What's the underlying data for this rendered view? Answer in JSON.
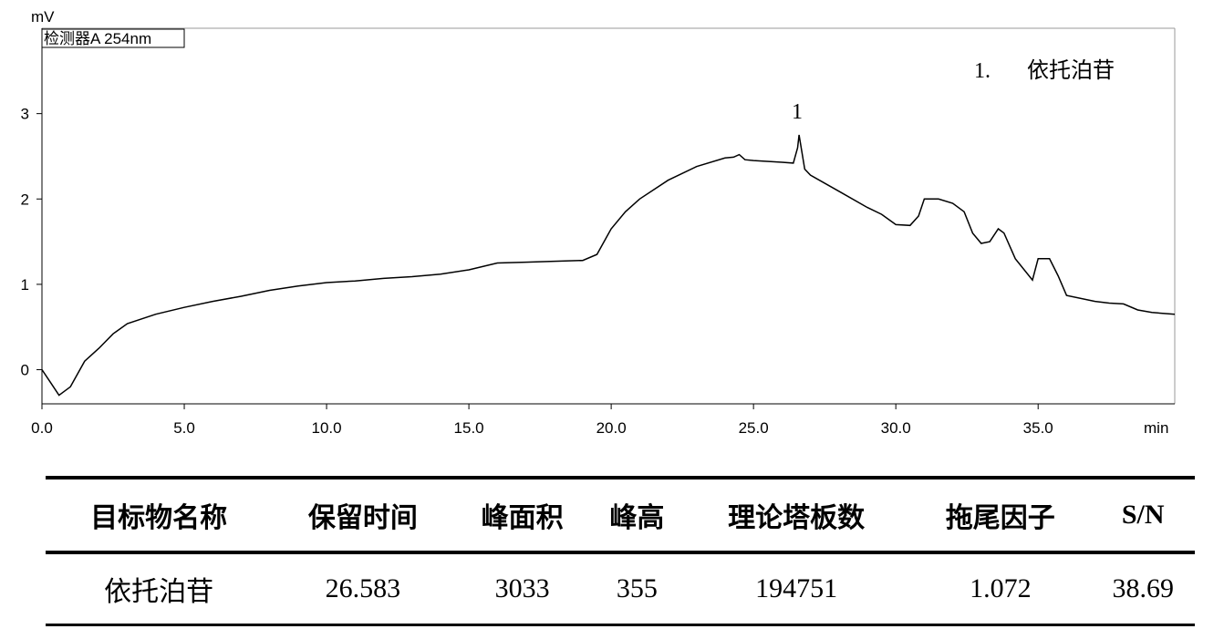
{
  "chart_data": {
    "type": "line",
    "y_label": "mV",
    "x_label": "min",
    "detector_label": "检测器A 254nm",
    "peak_label": "1",
    "legend_number": "1.",
    "legend_text": "依托泊苷",
    "color": "#000000",
    "xlim": [
      0,
      39.8
    ],
    "ylim": [
      -0.4,
      4.0
    ],
    "xticks": [
      {
        "value": 0,
        "label": "0.0"
      },
      {
        "value": 5,
        "label": "5.0"
      },
      {
        "value": 10,
        "label": "10.0"
      },
      {
        "value": 15,
        "label": "15.0"
      },
      {
        "value": 20,
        "label": "20.0"
      },
      {
        "value": 25,
        "label": "25.0"
      },
      {
        "value": 30,
        "label": "30.0"
      },
      {
        "value": 35,
        "label": "35.0"
      }
    ],
    "yticks": [
      0,
      1,
      2,
      3
    ],
    "x": [
      0,
      0.3,
      0.6,
      1.0,
      1.5,
      2.0,
      2.5,
      3.0,
      4.0,
      5.0,
      6.0,
      7.0,
      8.0,
      9.0,
      10.0,
      11,
      12,
      13,
      14,
      15,
      16,
      17,
      18,
      19,
      19.5,
      20,
      20.5,
      21,
      22,
      23,
      24,
      24.3,
      24.5,
      24.7,
      25,
      26,
      26.4,
      26.55,
      26.6,
      26.7,
      26.8,
      27,
      28,
      29,
      29.5,
      30,
      30.5,
      30.8,
      31,
      31.5,
      32,
      32.4,
      32.7,
      33,
      33.3,
      33.6,
      33.8,
      34.2,
      34.8,
      35.0,
      35.4,
      35.7,
      36.0,
      37,
      37.5,
      38,
      38.5,
      39,
      39.8
    ],
    "values": [
      0,
      -0.15,
      -0.3,
      -0.2,
      0.1,
      0.25,
      0.42,
      0.54,
      0.65,
      0.73,
      0.8,
      0.86,
      0.93,
      0.98,
      1.02,
      1.04,
      1.07,
      1.09,
      1.12,
      1.17,
      1.25,
      1.26,
      1.27,
      1.28,
      1.35,
      1.65,
      1.85,
      2.0,
      2.22,
      2.38,
      2.48,
      2.49,
      2.52,
      2.46,
      2.45,
      2.43,
      2.42,
      2.6,
      2.75,
      2.55,
      2.35,
      2.28,
      2.09,
      1.9,
      1.82,
      1.7,
      1.69,
      1.8,
      2.0,
      2.0,
      1.95,
      1.85,
      1.6,
      1.48,
      1.5,
      1.65,
      1.6,
      1.3,
      1.05,
      1.3,
      1.3,
      1.1,
      0.87,
      0.8,
      0.78,
      0.77,
      0.7,
      0.67,
      0.65
    ]
  },
  "table": {
    "headers": [
      "目标物名称",
      "保留时间",
      "峰面积",
      "峰高",
      "理论塔板数",
      "拖尾因子",
      "S/N"
    ],
    "rows": [
      [
        "依托泊苷",
        "26.583",
        "3033",
        "355",
        "194751",
        "1.072",
        "38.69"
      ]
    ]
  }
}
